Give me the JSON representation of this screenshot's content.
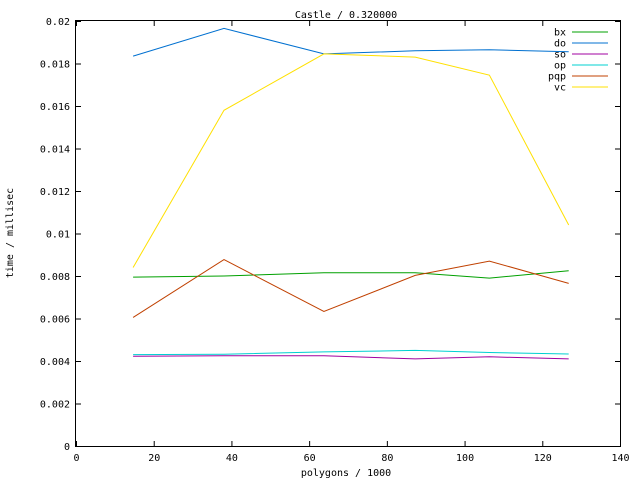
{
  "chart_data": {
    "type": "line",
    "title": "Castle / 0.320000",
    "xlabel": "polygons / 1000",
    "ylabel": "time / millisec",
    "xlim": [
      0,
      140
    ],
    "ylim": [
      0,
      0.02
    ],
    "xticks": [
      "0",
      "20",
      "40",
      "60",
      "80",
      "100",
      "120",
      "140"
    ],
    "yticks": [
      "0",
      "0.002",
      "0.004",
      "0.006",
      "0.008",
      "0.01",
      "0.012",
      "0.014",
      "0.016",
      "0.018",
      "0.02"
    ],
    "grid": false,
    "legend_position": "top-right",
    "x": [
      14.7,
      38.1,
      63.8,
      87.3,
      106.4,
      126.8
    ],
    "series": [
      {
        "name": "bx",
        "color": "#00a000",
        "values": [
          0.00795,
          0.008,
          0.00815,
          0.00815,
          0.0079,
          0.00825
        ]
      },
      {
        "name": "do",
        "color": "#0070d0",
        "values": [
          0.01835,
          0.01965,
          0.01845,
          0.0186,
          0.01865,
          0.01855
        ]
      },
      {
        "name": "so",
        "color": "#a000a0",
        "values": [
          0.00422,
          0.00425,
          0.00425,
          0.0041,
          0.0042,
          0.0041
        ]
      },
      {
        "name": "op",
        "color": "#00d0d0",
        "values": [
          0.0043,
          0.00432,
          0.00443,
          0.0045,
          0.0044,
          0.00433
        ]
      },
      {
        "name": "pqp",
        "color": "#c04000",
        "values": [
          0.00605,
          0.00877,
          0.00633,
          0.00803,
          0.0087,
          0.00765
        ]
      },
      {
        "name": "vc",
        "color": "#ffe000",
        "values": [
          0.0084,
          0.0158,
          0.01845,
          0.0183,
          0.01745,
          0.0104
        ]
      }
    ]
  }
}
